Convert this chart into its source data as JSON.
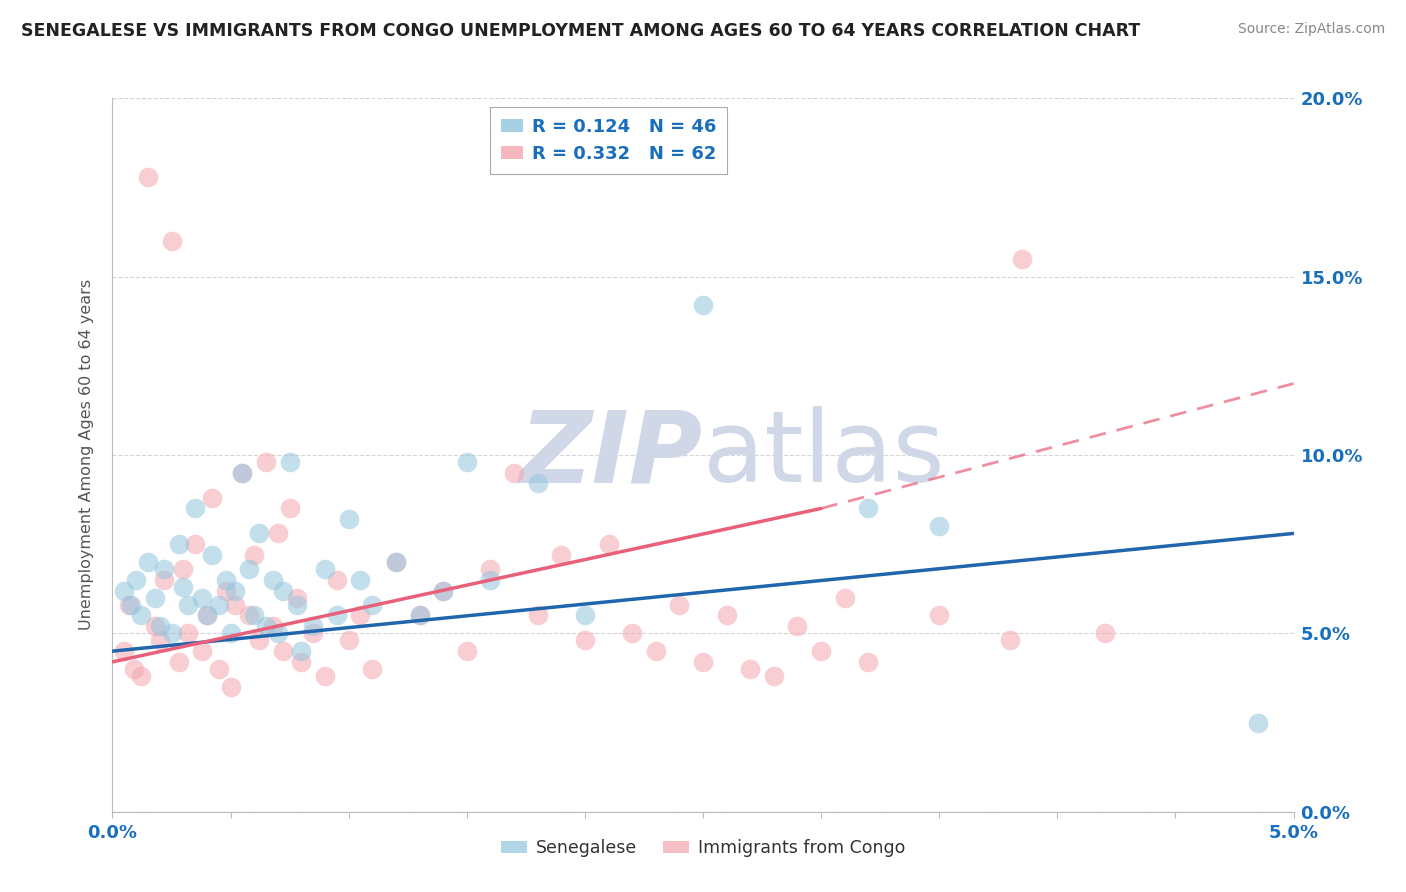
{
  "title": "SENEGALESE VS IMMIGRANTS FROM CONGO UNEMPLOYMENT AMONG AGES 60 TO 64 YEARS CORRELATION CHART",
  "source": "Source: ZipAtlas.com",
  "ylabel": "Unemployment Among Ages 60 to 64 years",
  "xlim": [
    0.0,
    5.0
  ],
  "ylim": [
    0.0,
    20.0
  ],
  "senegalese_color": "#92c5de",
  "congo_color": "#f4a6b0",
  "blue_trend_color": "#2166ac",
  "pink_trend_color": "#e8607a",
  "watermark_color": "#d0d8e8",
  "grid_color": "#cccccc",
  "background_color": "#ffffff",
  "blue_scatter": [
    [
      0.05,
      6.2
    ],
    [
      0.08,
      5.8
    ],
    [
      0.1,
      6.5
    ],
    [
      0.12,
      5.5
    ],
    [
      0.15,
      7.0
    ],
    [
      0.18,
      6.0
    ],
    [
      0.2,
      5.2
    ],
    [
      0.22,
      6.8
    ],
    [
      0.25,
      5.0
    ],
    [
      0.28,
      7.5
    ],
    [
      0.3,
      6.3
    ],
    [
      0.32,
      5.8
    ],
    [
      0.35,
      8.5
    ],
    [
      0.38,
      6.0
    ],
    [
      0.4,
      5.5
    ],
    [
      0.42,
      7.2
    ],
    [
      0.45,
      5.8
    ],
    [
      0.48,
      6.5
    ],
    [
      0.5,
      5.0
    ],
    [
      0.52,
      6.2
    ],
    [
      0.55,
      9.5
    ],
    [
      0.58,
      6.8
    ],
    [
      0.6,
      5.5
    ],
    [
      0.62,
      7.8
    ],
    [
      0.65,
      5.2
    ],
    [
      0.68,
      6.5
    ],
    [
      0.7,
      5.0
    ],
    [
      0.72,
      6.2
    ],
    [
      0.75,
      9.8
    ],
    [
      0.78,
      5.8
    ],
    [
      0.8,
      4.5
    ],
    [
      0.85,
      5.2
    ],
    [
      0.9,
      6.8
    ],
    [
      0.95,
      5.5
    ],
    [
      1.0,
      8.2
    ],
    [
      1.05,
      6.5
    ],
    [
      1.1,
      5.8
    ],
    [
      1.2,
      7.0
    ],
    [
      1.3,
      5.5
    ],
    [
      1.4,
      6.2
    ],
    [
      1.5,
      9.8
    ],
    [
      1.6,
      6.5
    ],
    [
      1.8,
      9.2
    ],
    [
      2.0,
      5.5
    ],
    [
      2.5,
      14.2
    ],
    [
      3.2,
      8.5
    ],
    [
      3.5,
      8.0
    ],
    [
      4.85,
      2.5
    ]
  ],
  "pink_scatter": [
    [
      0.05,
      4.5
    ],
    [
      0.07,
      5.8
    ],
    [
      0.09,
      4.0
    ],
    [
      0.12,
      3.8
    ],
    [
      0.15,
      17.8
    ],
    [
      0.18,
      5.2
    ],
    [
      0.2,
      4.8
    ],
    [
      0.22,
      6.5
    ],
    [
      0.25,
      16.0
    ],
    [
      0.28,
      4.2
    ],
    [
      0.3,
      6.8
    ],
    [
      0.32,
      5.0
    ],
    [
      0.35,
      7.5
    ],
    [
      0.38,
      4.5
    ],
    [
      0.4,
      5.5
    ],
    [
      0.42,
      8.8
    ],
    [
      0.45,
      4.0
    ],
    [
      0.48,
      6.2
    ],
    [
      0.5,
      3.5
    ],
    [
      0.52,
      5.8
    ],
    [
      0.55,
      9.5
    ],
    [
      0.58,
      5.5
    ],
    [
      0.6,
      7.2
    ],
    [
      0.62,
      4.8
    ],
    [
      0.65,
      9.8
    ],
    [
      0.68,
      5.2
    ],
    [
      0.7,
      7.8
    ],
    [
      0.72,
      4.5
    ],
    [
      0.75,
      8.5
    ],
    [
      0.78,
      6.0
    ],
    [
      0.8,
      4.2
    ],
    [
      0.85,
      5.0
    ],
    [
      0.9,
      3.8
    ],
    [
      0.95,
      6.5
    ],
    [
      1.0,
      4.8
    ],
    [
      1.05,
      5.5
    ],
    [
      1.1,
      4.0
    ],
    [
      1.2,
      7.0
    ],
    [
      1.3,
      5.5
    ],
    [
      1.4,
      6.2
    ],
    [
      1.5,
      4.5
    ],
    [
      1.6,
      6.8
    ],
    [
      1.7,
      9.5
    ],
    [
      1.8,
      5.5
    ],
    [
      1.9,
      7.2
    ],
    [
      2.0,
      4.8
    ],
    [
      2.1,
      7.5
    ],
    [
      2.2,
      5.0
    ],
    [
      2.3,
      4.5
    ],
    [
      2.4,
      5.8
    ],
    [
      2.5,
      4.2
    ],
    [
      2.6,
      5.5
    ],
    [
      2.7,
      4.0
    ],
    [
      2.8,
      3.8
    ],
    [
      2.9,
      5.2
    ],
    [
      3.0,
      4.5
    ],
    [
      3.1,
      6.0
    ],
    [
      3.2,
      4.2
    ],
    [
      3.5,
      5.5
    ],
    [
      3.8,
      4.8
    ],
    [
      3.85,
      15.5
    ],
    [
      4.2,
      5.0
    ]
  ],
  "blue_trend": [
    0.0,
    4.5,
    5.0,
    7.8
  ],
  "pink_trend_solid": [
    0.0,
    4.2,
    3.0,
    8.5
  ],
  "pink_trend_dashed": [
    3.0,
    8.5,
    5.0,
    12.0
  ],
  "yticks": [
    0,
    5,
    10,
    15,
    20
  ],
  "ytick_labels": [
    "0.0%",
    "5.0%",
    "10.0%",
    "15.0%",
    "20.0%"
  ],
  "xtick_labels_show": [
    "0.0%",
    "5.0%"
  ]
}
